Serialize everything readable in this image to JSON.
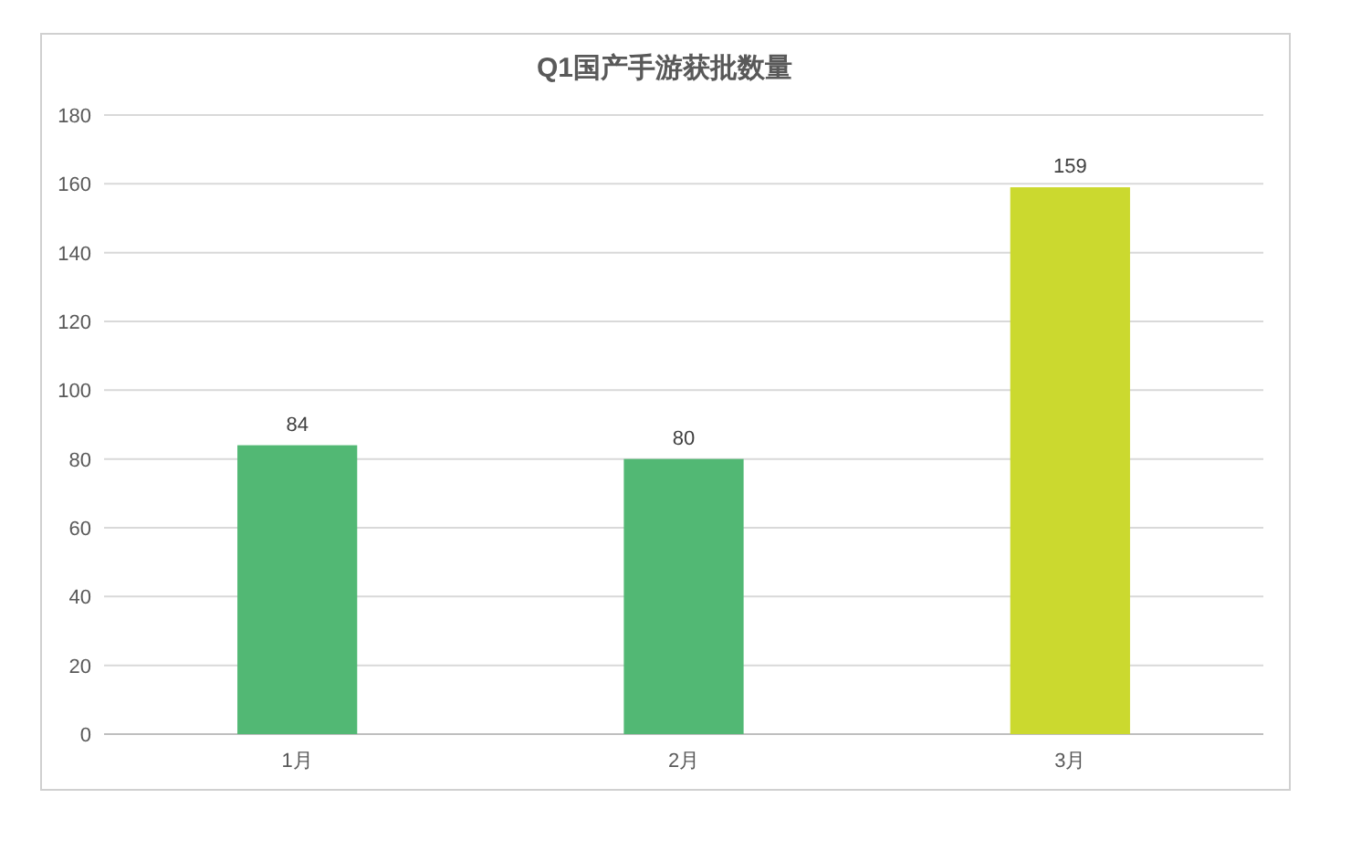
{
  "chart_data": {
    "type": "bar",
    "title": "Q1国产手游获批数量",
    "categories": [
      "1月",
      "2月",
      "3月"
    ],
    "values": [
      84,
      80,
      159
    ],
    "colors": [
      "#52b874",
      "#52b874",
      "#cbd92f"
    ],
    "ylim": [
      0,
      180
    ],
    "yticks": [
      0,
      20,
      40,
      60,
      80,
      100,
      120,
      140,
      160,
      180
    ],
    "grid": "y",
    "data_labels": true
  }
}
